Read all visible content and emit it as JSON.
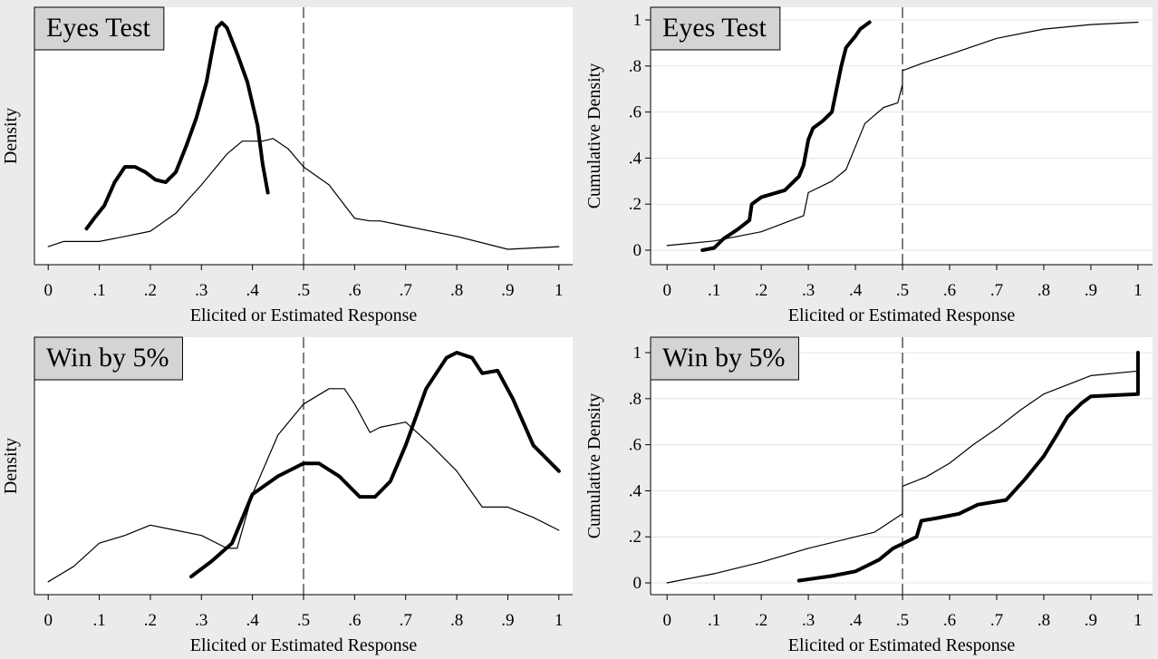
{
  "chart_data": [
    {
      "type": "line",
      "title": "Eyes Test",
      "xlabel": "Elicited or Estimated Response",
      "ylabel": "Density",
      "xlim": [
        -0.027,
        1.027
      ],
      "ylim": [
        0,
        1
      ],
      "xticks": [
        0,
        {
          "value": 0.1,
          "label": ".1"
        },
        {
          "value": 0.2,
          "label": ".2"
        },
        {
          "value": 0.3,
          "label": ".3"
        },
        {
          "value": 0.4,
          "label": ".4"
        },
        {
          "value": 0.5,
          "label": ".5"
        },
        {
          "value": 0.6,
          "label": ".6"
        },
        {
          "value": 0.7,
          "label": ".7"
        },
        {
          "value": 0.8,
          "label": ".8"
        },
        {
          "value": 0.9,
          "label": ".9"
        },
        1
      ],
      "yticks": [],
      "grid": false,
      "vline": 0.5,
      "series": [
        {
          "color": "#000000",
          "width": 4,
          "x": [
            0.075,
            0.09,
            0.11,
            0.13,
            0.15,
            0.17,
            0.19,
            0.21,
            0.23,
            0.25,
            0.27,
            0.29,
            0.31,
            0.32,
            0.33,
            0.34,
            0.35,
            0.37,
            0.39,
            0.41,
            0.42,
            0.43
          ],
          "values": [
            0.14,
            0.18,
            0.23,
            0.32,
            0.38,
            0.38,
            0.36,
            0.33,
            0.32,
            0.36,
            0.46,
            0.57,
            0.71,
            0.82,
            0.92,
            0.94,
            0.92,
            0.82,
            0.71,
            0.54,
            0.39,
            0.28
          ]
        },
        {
          "color": "#000000",
          "width": 1.2,
          "x": [
            0,
            0.03,
            0.1,
            0.15,
            0.2,
            0.25,
            0.3,
            0.35,
            0.38,
            0.42,
            0.44,
            0.47,
            0.5,
            0.55,
            0.6,
            0.63,
            0.65,
            0.7,
            0.8,
            0.9,
            1
          ],
          "values": [
            0.07,
            0.09,
            0.09,
            0.11,
            0.13,
            0.2,
            0.31,
            0.43,
            0.48,
            0.48,
            0.49,
            0.45,
            0.38,
            0.31,
            0.18,
            0.17,
            0.17,
            0.15,
            0.11,
            0.06,
            0.07
          ]
        }
      ]
    },
    {
      "type": "line",
      "title": "Eyes Test",
      "xlabel": "Elicited or Estimated Response",
      "ylabel": "Cumulative Density",
      "xlim": [
        -0.035,
        1.031
      ],
      "ylim": [
        -0.063,
        1.055
      ],
      "xticks": [
        0,
        {
          "value": 0.1,
          "label": ".1"
        },
        {
          "value": 0.2,
          "label": ".2"
        },
        {
          "value": 0.3,
          "label": ".3"
        },
        {
          "value": 0.4,
          "label": ".4"
        },
        {
          "value": 0.5,
          "label": ".5"
        },
        {
          "value": 0.6,
          "label": ".6"
        },
        {
          "value": 0.7,
          "label": ".7"
        },
        {
          "value": 0.8,
          "label": ".8"
        },
        {
          "value": 0.9,
          "label": ".9"
        },
        1
      ],
      "yticks": [
        0,
        {
          "value": 0.2,
          "label": ".2"
        },
        {
          "value": 0.4,
          "label": ".4"
        },
        {
          "value": 0.6,
          "label": ".6"
        },
        {
          "value": 0.8,
          "label": ".8"
        },
        1
      ],
      "grid": true,
      "vline": 0.5,
      "series": [
        {
          "color": "#000000",
          "width": 4,
          "x": [
            0.075,
            0.1,
            0.12,
            0.15,
            0.175,
            0.18,
            0.2,
            0.25,
            0.28,
            0.29,
            0.3,
            0.31,
            0.33,
            0.35,
            0.36,
            0.37,
            0.38,
            0.4,
            0.41,
            0.43
          ],
          "values": [
            0,
            0.01,
            0.05,
            0.09,
            0.13,
            0.2,
            0.23,
            0.26,
            0.32,
            0.37,
            0.48,
            0.53,
            0.56,
            0.6,
            0.7,
            0.8,
            0.88,
            0.93,
            0.96,
            0.99
          ]
        },
        {
          "color": "#000000",
          "width": 1.2,
          "x": [
            0,
            0.1,
            0.2,
            0.29,
            0.3,
            0.35,
            0.38,
            0.4,
            0.42,
            0.46,
            0.49,
            0.5,
            0.5,
            0.54,
            0.6,
            0.7,
            0.8,
            0.9,
            1
          ],
          "values": [
            0.02,
            0.04,
            0.08,
            0.15,
            0.25,
            0.3,
            0.35,
            0.45,
            0.55,
            0.62,
            0.64,
            0.72,
            0.78,
            0.81,
            0.85,
            0.92,
            0.96,
            0.98,
            0.99
          ]
        }
      ]
    },
    {
      "type": "line",
      "title": "Win by 5%",
      "xlabel": "Elicited or Estimated Response",
      "ylabel": "Density",
      "xlim": [
        -0.027,
        1.027
      ],
      "ylim": [
        0,
        1
      ],
      "xticks": [
        0,
        {
          "value": 0.1,
          "label": ".1"
        },
        {
          "value": 0.2,
          "label": ".2"
        },
        {
          "value": 0.3,
          "label": ".3"
        },
        {
          "value": 0.4,
          "label": ".4"
        },
        {
          "value": 0.5,
          "label": ".5"
        },
        {
          "value": 0.6,
          "label": ".6"
        },
        {
          "value": 0.7,
          "label": ".7"
        },
        {
          "value": 0.8,
          "label": ".8"
        },
        {
          "value": 0.9,
          "label": ".9"
        },
        1
      ],
      "yticks": [],
      "grid": false,
      "vline": 0.5,
      "series": [
        {
          "color": "#000000",
          "width": 4,
          "x": [
            0.28,
            0.32,
            0.36,
            0.4,
            0.45,
            0.5,
            0.53,
            0.57,
            0.61,
            0.64,
            0.67,
            0.7,
            0.74,
            0.78,
            0.8,
            0.83,
            0.85,
            0.88,
            0.91,
            0.95,
            1
          ],
          "values": [
            0.07,
            0.13,
            0.2,
            0.39,
            0.46,
            0.51,
            0.51,
            0.46,
            0.38,
            0.38,
            0.44,
            0.58,
            0.8,
            0.92,
            0.94,
            0.92,
            0.86,
            0.87,
            0.76,
            0.58,
            0.48
          ]
        },
        {
          "color": "#000000",
          "width": 1.2,
          "x": [
            0,
            0.05,
            0.1,
            0.15,
            0.2,
            0.25,
            0.3,
            0.35,
            0.37,
            0.4,
            0.45,
            0.5,
            0.55,
            0.58,
            0.6,
            0.63,
            0.65,
            0.7,
            0.75,
            0.8,
            0.85,
            0.9,
            0.95,
            1
          ],
          "values": [
            0.05,
            0.11,
            0.2,
            0.23,
            0.27,
            0.25,
            0.23,
            0.18,
            0.18,
            0.39,
            0.62,
            0.74,
            0.8,
            0.8,
            0.74,
            0.63,
            0.65,
            0.67,
            0.58,
            0.48,
            0.34,
            0.34,
            0.3,
            0.25
          ]
        }
      ]
    },
    {
      "type": "line",
      "title": "Win by 5%",
      "xlabel": "Elicited or Estimated Response",
      "ylabel": "Cumulative Density",
      "xlim": [
        -0.035,
        1.031
      ],
      "ylim": [
        -0.051,
        1.067
      ],
      "xticks": [
        0,
        {
          "value": 0.1,
          "label": ".1"
        },
        {
          "value": 0.2,
          "label": ".2"
        },
        {
          "value": 0.3,
          "label": ".3"
        },
        {
          "value": 0.4,
          "label": ".4"
        },
        {
          "value": 0.5,
          "label": ".5"
        },
        {
          "value": 0.6,
          "label": ".6"
        },
        {
          "value": 0.7,
          "label": ".7"
        },
        {
          "value": 0.8,
          "label": ".8"
        },
        {
          "value": 0.9,
          "label": ".9"
        },
        1
      ],
      "yticks": [
        0,
        {
          "value": 0.2,
          "label": ".2"
        },
        {
          "value": 0.4,
          "label": ".4"
        },
        {
          "value": 0.6,
          "label": ".6"
        },
        {
          "value": 0.8,
          "label": ".8"
        },
        1
      ],
      "grid": true,
      "vline": 0.5,
      "series": [
        {
          "color": "#000000",
          "width": 4,
          "x": [
            0.28,
            0.35,
            0.4,
            0.45,
            0.48,
            0.5,
            0.53,
            0.54,
            0.57,
            0.62,
            0.66,
            0.72,
            0.76,
            0.8,
            0.83,
            0.85,
            0.88,
            0.9,
            1,
            1
          ],
          "values": [
            0.01,
            0.03,
            0.05,
            0.1,
            0.15,
            0.17,
            0.2,
            0.27,
            0.28,
            0.3,
            0.34,
            0.36,
            0.45,
            0.55,
            0.65,
            0.72,
            0.78,
            0.81,
            0.82,
            1
          ]
        },
        {
          "color": "#000000",
          "width": 1.2,
          "x": [
            0,
            0.1,
            0.2,
            0.3,
            0.4,
            0.44,
            0.5,
            0.5,
            0.55,
            0.6,
            0.65,
            0.7,
            0.75,
            0.8,
            0.85,
            0.9,
            1
          ],
          "values": [
            0,
            0.04,
            0.09,
            0.15,
            0.2,
            0.22,
            0.3,
            0.42,
            0.46,
            0.52,
            0.6,
            0.67,
            0.75,
            0.82,
            0.86,
            0.9,
            0.92
          ]
        }
      ]
    }
  ]
}
